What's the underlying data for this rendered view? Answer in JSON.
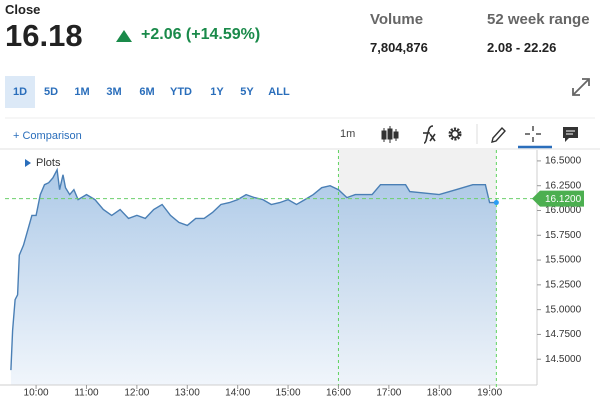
{
  "header": {
    "close_label": "Close",
    "price": "16.18",
    "change": "+2.06 (+14.59%)",
    "volume_label": "Volume",
    "volume": "7,804,876",
    "range_label": "52 week range",
    "range": "2.08 - 22.26"
  },
  "tabs": [
    "1D",
    "5D",
    "1M",
    "3M",
    "6M",
    "YTD",
    "1Y",
    "5Y",
    "ALL"
  ],
  "active_tab": 0,
  "toolbar": {
    "comparison": "+ Comparison",
    "interval": "1m",
    "plots": "Plots"
  },
  "chart_data": {
    "type": "area",
    "color": "#4a7fb5",
    "x": [
      "09:30",
      "09:32",
      "09:35",
      "09:38",
      "09:40",
      "09:45",
      "09:50",
      "09:55",
      "10:00",
      "10:05",
      "10:10",
      "10:15",
      "10:20",
      "10:25",
      "10:28",
      "10:32",
      "10:35",
      "10:40",
      "10:45",
      "10:50",
      "11:00",
      "11:10",
      "11:20",
      "11:30",
      "11:40",
      "11:50",
      "12:00",
      "12:10",
      "12:20",
      "12:30",
      "12:40",
      "12:50",
      "13:00",
      "13:10",
      "13:20",
      "13:30",
      "13:40",
      "13:50",
      "14:00",
      "14:10",
      "14:20",
      "14:30",
      "14:40",
      "14:50",
      "15:00",
      "15:10",
      "15:20",
      "15:30",
      "15:40",
      "15:50",
      "16:00",
      "16:10",
      "16:20",
      "16:40",
      "16:50",
      "17:20",
      "17:25",
      "18:00",
      "18:20",
      "18:40",
      "18:55",
      "19:00",
      "19:08"
    ],
    "values": [
      14.39,
      14.79,
      15.1,
      15.15,
      15.55,
      15.65,
      15.8,
      15.95,
      15.95,
      16.16,
      16.26,
      16.28,
      16.33,
      16.41,
      16.21,
      16.36,
      16.23,
      16.16,
      16.21,
      16.11,
      16.16,
      16.11,
      16.01,
      15.95,
      16.01,
      15.92,
      15.95,
      15.92,
      16.01,
      16.06,
      15.95,
      15.88,
      15.85,
      15.92,
      15.92,
      15.98,
      16.06,
      16.08,
      16.11,
      16.16,
      16.13,
      16.11,
      16.06,
      16.08,
      16.11,
      16.06,
      16.11,
      16.16,
      16.23,
      16.25,
      16.21,
      16.13,
      16.16,
      16.16,
      16.26,
      16.26,
      16.19,
      16.16,
      16.21,
      16.26,
      16.26,
      16.08,
      16.08
    ],
    "xlim": [
      "09:23",
      "19:54"
    ],
    "xticks": [
      "10:00",
      "11:00",
      "12:00",
      "13:00",
      "14:00",
      "15:00",
      "16:00",
      "17:00",
      "18:00",
      "19:00"
    ],
    "ylim": [
      14.24,
      16.61
    ],
    "yticks": [
      {
        "value": 14.5,
        "label": "14.5000"
      },
      {
        "value": 14.75,
        "label": "14.7500"
      },
      {
        "value": 15,
        "label": "15.0000"
      },
      {
        "value": 15.25,
        "label": "15.2500"
      },
      {
        "value": 15.5,
        "label": "15.5000"
      },
      {
        "value": 15.75,
        "label": "15.7500"
      },
      {
        "value": 16,
        "label": "16.0000"
      },
      {
        "value": 16.25,
        "label": "16.2500"
      },
      {
        "value": 16.5,
        "label": "16.5000"
      }
    ],
    "extended_hours": [
      "16:00",
      "19:08"
    ],
    "price_line": {
      "value": 16.12,
      "label": "16.1200"
    }
  }
}
